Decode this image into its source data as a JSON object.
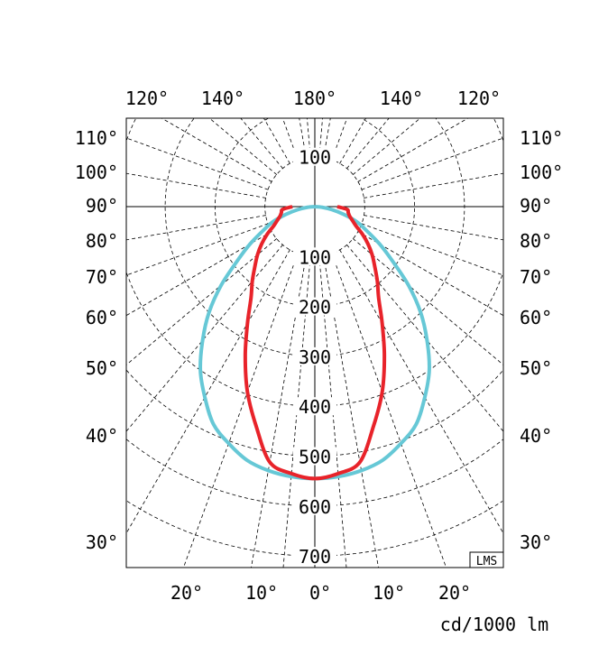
{
  "chart_data": {
    "type": "polar",
    "unit_label": "cd/1000 lm",
    "watermark": "LMS",
    "radial_ticks": [
      100,
      200,
      300,
      400,
      500,
      600,
      700
    ],
    "upper_radial_tick": "100",
    "rmax": 700,
    "grid": true,
    "top_angle_labels": [
      "120°",
      "140°",
      "180°",
      "140°",
      "120°"
    ],
    "left_angle_labels": [
      "110°",
      "100°",
      "90°",
      "80°",
      "70°",
      "60°",
      "50°",
      "40°",
      "30°"
    ],
    "right_angle_labels": [
      "110°",
      "100°",
      "90°",
      "80°",
      "70°",
      "60°",
      "50°",
      "40°",
      "30°"
    ],
    "bottom_angle_labels": [
      "20°",
      "10°",
      "0°",
      "10°",
      "20°"
    ],
    "angles": [
      0,
      5,
      10,
      15,
      20,
      25,
      30,
      35,
      40,
      45,
      50,
      55,
      60,
      65,
      70,
      75,
      80,
      85,
      90
    ],
    "series": [
      {
        "color": "#66c8d6",
        "values": [
          545,
          543,
          537,
          526,
          505,
          481,
          441,
          400,
          350,
          300,
          245,
          190,
          150,
          115,
          90,
          60,
          35,
          15,
          0
        ]
      },
      {
        "color": "#e8232a",
        "values": [
          545,
          537,
          520,
          455,
          395,
          330,
          270,
          223,
          195,
          170,
          150,
          130,
          110,
          91,
          80,
          72,
          68,
          65,
          45
        ]
      }
    ]
  }
}
